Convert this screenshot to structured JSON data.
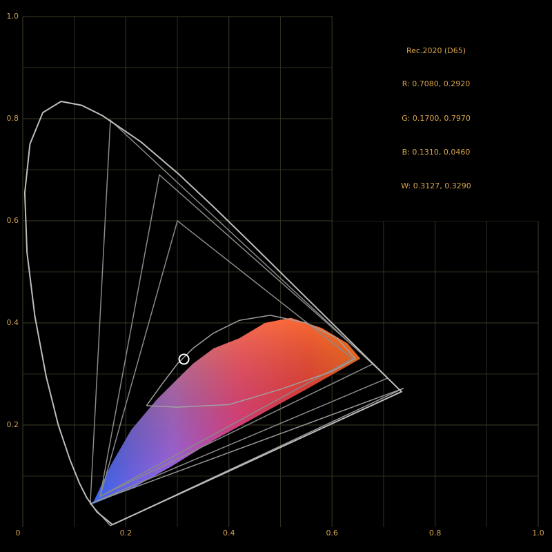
{
  "chart_data": {
    "type": "chromaticity",
    "xlim": [
      0,
      1
    ],
    "ylim": [
      0,
      1
    ],
    "xticks": [
      0,
      0.2,
      0.4,
      0.6,
      0.8,
      {
        "value": 1,
        "label": "1.0"
      }
    ],
    "yticks": [
      0.2,
      0.4,
      0.6,
      0.8,
      {
        "value": 1,
        "label": "1.0"
      }
    ],
    "xminorticks": [
      0.1,
      0.3,
      0.5,
      0.7,
      0.9
    ],
    "yminorticks": [
      0.1,
      0.3,
      0.5,
      0.7,
      0.9
    ],
    "grid": true,
    "annotations": [
      "Rec.2020 (D65)",
      "R: 0.7080, 0.2920",
      "G: 0.1700, 0.7970",
      "B: 0.1310, 0.0460",
      "W: 0.3127, 0.3290"
    ],
    "cloud": {
      "x": [
        0.135,
        0.17,
        0.21,
        0.26,
        0.3,
        0.33,
        0.37,
        0.42,
        0.47,
        0.52,
        0.58,
        0.63,
        0.655,
        0.62,
        0.55,
        0.46,
        0.37,
        0.29,
        0.22,
        0.16
      ],
      "y": [
        0.045,
        0.12,
        0.19,
        0.25,
        0.29,
        0.32,
        0.35,
        0.37,
        0.4,
        0.41,
        0.39,
        0.36,
        0.33,
        0.31,
        0.27,
        0.22,
        0.17,
        0.12,
        0.08,
        0.055
      ]
    },
    "locus": {
      "color": "#bdbdbd",
      "x": [
        0.1741,
        0.144,
        0.1241,
        0.1096,
        0.0913,
        0.0687,
        0.0454,
        0.0235,
        0.0082,
        0.0039,
        0.0139,
        0.0389,
        0.0743,
        0.1142,
        0.1547,
        0.2296,
        0.3016,
        0.3731,
        0.4441,
        0.5125,
        0.5752,
        0.627,
        0.6915,
        0.7347,
        0.1741
      ],
      "y": [
        0.005,
        0.0297,
        0.0578,
        0.0868,
        0.1327,
        0.2007,
        0.295,
        0.4127,
        0.5384,
        0.6548,
        0.7502,
        0.812,
        0.8338,
        0.8262,
        0.8059,
        0.7543,
        0.6923,
        0.6245,
        0.5547,
        0.4866,
        0.4242,
        0.3725,
        0.3083,
        0.2653,
        0.005
      ]
    },
    "gamuts": [
      {
        "color": "#8a8a8a",
        "x": [
          0.708,
          0.17,
          0.131,
          0.708
        ],
        "y": [
          0.292,
          0.797,
          0.046,
          0.292
        ]
      },
      {
        "color": "#8a8a8a",
        "x": [
          0.68,
          0.265,
          0.15,
          0.68
        ],
        "y": [
          0.32,
          0.69,
          0.06,
          0.32
        ]
      },
      {
        "color": "#8a8a8a",
        "x": [
          0.64,
          0.3,
          0.15,
          0.64
        ],
        "y": [
          0.33,
          0.6,
          0.06,
          0.33
        ]
      },
      {
        "color": "#9a9a9a",
        "x": [
          0.739,
          0.17,
          0.131,
          0.739
        ],
        "y": [
          0.272,
          0.003,
          0.046,
          0.272
        ]
      }
    ],
    "curve": {
      "color": "#a0a0a0",
      "x": [
        0.24,
        0.27,
        0.3,
        0.33,
        0.37,
        0.42,
        0.48,
        0.55,
        0.61,
        0.645,
        0.6,
        0.5,
        0.4,
        0.3,
        0.24
      ],
      "y": [
        0.238,
        0.28,
        0.32,
        0.35,
        0.38,
        0.405,
        0.415,
        0.4,
        0.37,
        0.33,
        0.305,
        0.27,
        0.24,
        0.235,
        0.238
      ]
    },
    "white_point": {
      "x": 0.3127,
      "y": 0.329,
      "color": "#ffffff"
    }
  }
}
